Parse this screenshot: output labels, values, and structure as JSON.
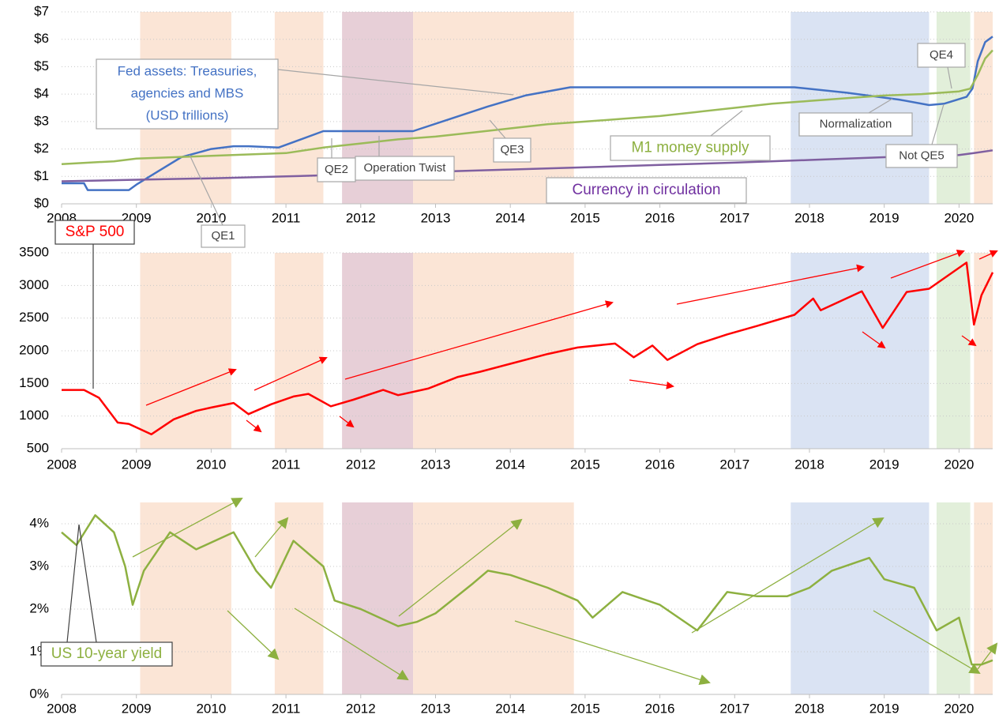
{
  "chart_data": [
    {
      "type": "line",
      "xlim": [
        2008,
        2020.45
      ],
      "xticks": [
        2008,
        2009,
        2010,
        2011,
        2012,
        2013,
        2014,
        2015,
        2016,
        2017,
        2018,
        2019,
        2020
      ],
      "ylim": [
        0,
        7
      ],
      "yticks": [
        {
          "value": 0,
          "label": "$0"
        },
        {
          "value": 1,
          "label": "$1"
        },
        {
          "value": 2,
          "label": "$2"
        },
        {
          "value": 3,
          "label": "$3"
        },
        {
          "value": 4,
          "label": "$4"
        },
        {
          "value": 5,
          "label": "$5"
        },
        {
          "value": 6,
          "label": "$6"
        },
        {
          "value": 7,
          "label": "$7"
        }
      ],
      "grid": true,
      "regions": [
        {
          "start": 2009.05,
          "end": 2010.27,
          "color": "#fbe5d6"
        },
        {
          "start": 2010.85,
          "end": 2011.5,
          "color": "#fbe5d6"
        },
        {
          "start": 2011.75,
          "end": 2012.7,
          "color": "#e7cfd7"
        },
        {
          "start": 2012.7,
          "end": 2014.85,
          "color": "#fbe5d6"
        },
        {
          "start": 2017.75,
          "end": 2019.6,
          "color": "#dae3f3"
        },
        {
          "start": 2019.7,
          "end": 2020.15,
          "color": "#e2efda"
        },
        {
          "start": 2020.2,
          "end": 2020.45,
          "color": "#fbe5d6"
        }
      ],
      "series": [
        {
          "color": "#4472c4",
          "x": [
            2008,
            2008.3,
            2008.35,
            2008.9,
            2009.0,
            2009.3,
            2009.6,
            2010.0,
            2010.3,
            2010.5,
            2010.9,
            2011.2,
            2011.5,
            2012.7,
            2013.2,
            2013.7,
            2014.2,
            2014.8,
            2017.8,
            2018.5,
            2019.2,
            2019.6,
            2019.8,
            2020.1,
            2020.18,
            2020.25,
            2020.35,
            2020.45
          ],
          "values": [
            0.75,
            0.75,
            0.5,
            0.5,
            0.7,
            1.2,
            1.7,
            2.0,
            2.1,
            2.1,
            2.05,
            2.35,
            2.65,
            2.65,
            3.1,
            3.55,
            3.95,
            4.25,
            4.25,
            4.05,
            3.8,
            3.6,
            3.65,
            3.9,
            4.2,
            5.2,
            5.9,
            6.1
          ]
        },
        {
          "color": "#9bbb59",
          "x": [
            2008,
            2008.7,
            2009,
            2009.5,
            2010,
            2010.5,
            2011,
            2011.5,
            2012,
            2012.5,
            2013,
            2013.5,
            2014,
            2014.5,
            2015,
            2015.5,
            2016,
            2016.5,
            2017,
            2017.5,
            2018,
            2018.5,
            2019,
            2019.5,
            2020,
            2020.15,
            2020.25,
            2020.35,
            2020.45
          ],
          "values": [
            1.45,
            1.55,
            1.65,
            1.7,
            1.75,
            1.8,
            1.85,
            2.05,
            2.2,
            2.35,
            2.45,
            2.6,
            2.75,
            2.9,
            3.0,
            3.1,
            3.2,
            3.35,
            3.5,
            3.65,
            3.75,
            3.85,
            3.95,
            4.0,
            4.1,
            4.2,
            4.7,
            5.3,
            5.6
          ]
        },
        {
          "color": "#7f5fa0",
          "x": [
            2008,
            2009,
            2010,
            2011,
            2012,
            2013,
            2014,
            2015,
            2016,
            2017,
            2018,
            2019,
            2020,
            2020.2,
            2020.45
          ],
          "values": [
            0.82,
            0.88,
            0.93,
            1.0,
            1.08,
            1.17,
            1.25,
            1.33,
            1.42,
            1.5,
            1.6,
            1.7,
            1.78,
            1.85,
            1.95
          ]
        }
      ],
      "annotations": [
        {
          "text": [
            "Fed assets: Treasuries,",
            "agencies and MBS",
            "(USD trillions)"
          ],
          "color": "#4472c4"
        },
        {
          "text": "QE1",
          "color": "#404040"
        },
        {
          "text": "QE2",
          "color": "#404040"
        },
        {
          "text": "Operation Twist",
          "color": "#404040"
        },
        {
          "text": "QE3",
          "color": "#404040"
        },
        {
          "text": "QE4",
          "color": "#404040"
        },
        {
          "text": "Normalization",
          "color": "#404040"
        },
        {
          "text": "Not QE5",
          "color": "#404040"
        },
        {
          "text": "M1 money supply",
          "color": "#8db040"
        },
        {
          "text": "Currency in circulation",
          "color": "#7030a0"
        }
      ]
    },
    {
      "type": "line",
      "xlim": [
        2008,
        2020.45
      ],
      "xticks": [
        2008,
        2009,
        2010,
        2011,
        2012,
        2013,
        2014,
        2015,
        2016,
        2017,
        2018,
        2019,
        2020
      ],
      "ylim": [
        500,
        3500
      ],
      "yticks": [
        500,
        1000,
        1500,
        2000,
        2500,
        3000,
        3500
      ],
      "grid": true,
      "regions": [
        {
          "start": 2009.05,
          "end": 2010.27,
          "color": "#fbe5d6"
        },
        {
          "start": 2010.85,
          "end": 2011.5,
          "color": "#fbe5d6"
        },
        {
          "start": 2011.75,
          "end": 2012.7,
          "color": "#e7cfd7"
        },
        {
          "start": 2012.7,
          "end": 2014.85,
          "color": "#fbe5d6"
        },
        {
          "start": 2017.75,
          "end": 2019.6,
          "color": "#dae3f3"
        },
        {
          "start": 2019.7,
          "end": 2020.15,
          "color": "#e2efda"
        },
        {
          "start": 2020.2,
          "end": 2020.45,
          "color": "#fbe5d6"
        }
      ],
      "series": [
        {
          "color": "#ff0000",
          "x": [
            2008.0,
            2008.3,
            2008.5,
            2008.75,
            2008.9,
            2009.2,
            2009.5,
            2009.8,
            2010.0,
            2010.3,
            2010.5,
            2010.8,
            2011.1,
            2011.3,
            2011.6,
            2011.9,
            2012.3,
            2012.5,
            2012.9,
            2013.3,
            2013.6,
            2014.0,
            2014.5,
            2014.9,
            2015.4,
            2015.65,
            2015.9,
            2016.1,
            2016.5,
            2016.9,
            2017.3,
            2017.8,
            2018.05,
            2018.15,
            2018.7,
            2018.98,
            2019.3,
            2019.6,
            2020.1,
            2020.2,
            2020.3,
            2020.45
          ],
          "values": [
            1400,
            1400,
            1280,
            900,
            880,
            720,
            950,
            1080,
            1130,
            1200,
            1030,
            1180,
            1300,
            1340,
            1150,
            1250,
            1400,
            1320,
            1420,
            1600,
            1680,
            1800,
            1950,
            2050,
            2110,
            1900,
            2080,
            1860,
            2100,
            2250,
            2380,
            2550,
            2800,
            2620,
            2910,
            2350,
            2900,
            2950,
            3350,
            2400,
            2850,
            3200
          ]
        }
      ],
      "annotations": [
        {
          "text": "S&P 500",
          "color": "#ff0000"
        }
      ]
    },
    {
      "type": "line",
      "xlim": [
        2008,
        2020.45
      ],
      "xticks": [
        2008,
        2009,
        2010,
        2011,
        2012,
        2013,
        2014,
        2015,
        2016,
        2017,
        2018,
        2019,
        2020
      ],
      "ylim": [
        0,
        4.5
      ],
      "yticks": [
        {
          "value": 0,
          "label": "0%"
        },
        {
          "value": 1,
          "label": "1%"
        },
        {
          "value": 2,
          "label": "2%"
        },
        {
          "value": 3,
          "label": "3%"
        },
        {
          "value": 4,
          "label": "4%"
        }
      ],
      "grid": true,
      "regions": [
        {
          "start": 2009.05,
          "end": 2010.27,
          "color": "#fbe5d6"
        },
        {
          "start": 2010.85,
          "end": 2011.5,
          "color": "#fbe5d6"
        },
        {
          "start": 2011.75,
          "end": 2012.7,
          "color": "#e7cfd7"
        },
        {
          "start": 2012.7,
          "end": 2014.85,
          "color": "#fbe5d6"
        },
        {
          "start": 2017.75,
          "end": 2019.6,
          "color": "#dae3f3"
        },
        {
          "start": 2019.7,
          "end": 2020.15,
          "color": "#e2efda"
        },
        {
          "start": 2020.2,
          "end": 2020.45,
          "color": "#fbe5d6"
        }
      ],
      "series": [
        {
          "color": "#8db040",
          "x": [
            2008.0,
            2008.2,
            2008.45,
            2008.7,
            2008.85,
            2008.95,
            2009.1,
            2009.45,
            2009.8,
            2010.3,
            2010.6,
            2010.8,
            2011.1,
            2011.5,
            2011.65,
            2012.0,
            2012.5,
            2012.75,
            2013.0,
            2013.5,
            2013.7,
            2014.0,
            2014.5,
            2014.9,
            2015.1,
            2015.5,
            2016.0,
            2016.5,
            2016.9,
            2017.3,
            2017.7,
            2018.0,
            2018.3,
            2018.8,
            2019.0,
            2019.4,
            2019.7,
            2020.0,
            2020.17,
            2020.3,
            2020.45
          ],
          "values": [
            3.8,
            3.5,
            4.2,
            3.8,
            3.0,
            2.1,
            2.9,
            3.8,
            3.4,
            3.8,
            2.9,
            2.5,
            3.6,
            3.0,
            2.2,
            2.0,
            1.6,
            1.7,
            1.9,
            2.6,
            2.9,
            2.8,
            2.5,
            2.2,
            1.8,
            2.4,
            2.1,
            1.5,
            2.4,
            2.3,
            2.3,
            2.5,
            2.9,
            3.2,
            2.7,
            2.5,
            1.5,
            1.8,
            0.7,
            0.7,
            0.8
          ]
        }
      ],
      "annotations": [
        {
          "text": "US 10-year yield",
          "color": "#8db040"
        }
      ]
    }
  ]
}
